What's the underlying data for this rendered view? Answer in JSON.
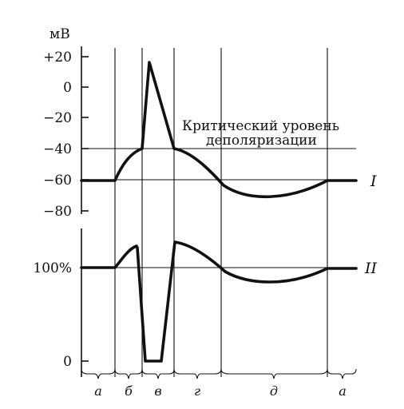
{
  "top_panel": {
    "unit": "мВ",
    "ticks": [
      "+20",
      "0",
      "−20",
      "−40",
      "−60",
      "−80"
    ],
    "threshold_line1": "Критический уровень",
    "threshold_line2": "деполяризации",
    "curve_label": "I"
  },
  "bottom_panel": {
    "ticks": [
      "100%",
      "0"
    ],
    "curve_label": "II"
  },
  "phases": [
    "а",
    "б",
    "в",
    "г",
    "д",
    "а"
  ]
}
